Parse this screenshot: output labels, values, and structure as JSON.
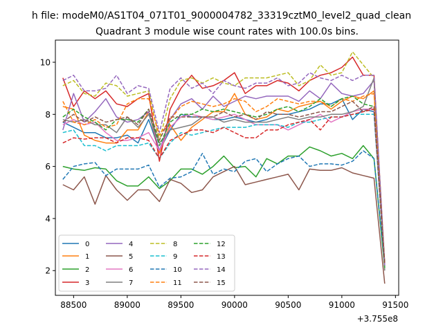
{
  "chart_data": {
    "type": "line",
    "suptitle": "h file: modeM0/AS1T04_071T01_9000004782_33319cztM0_level2_quad_clean",
    "title": "Quadrant 3 module wise count rates with 100.0s bins.",
    "xlabel": "",
    "ylabel": "",
    "x_offset_label": "+3.755e8",
    "xlim": [
      88330,
      91530
    ],
    "ylim": [
      1.05,
      10.85
    ],
    "xticks": [
      88500,
      89000,
      89500,
      90000,
      90500,
      91000,
      91500
    ],
    "xtick_labels": [
      "88500",
      "89000",
      "89500",
      "90000",
      "90500",
      "91000",
      "91500"
    ],
    "yticks": [
      2,
      4,
      6,
      8,
      10
    ],
    "ytick_labels": [
      "2",
      "4",
      "6",
      "8",
      "10"
    ],
    "grid": false,
    "legend_position": "lower-left",
    "x": [
      88400,
      88500,
      88600,
      88700,
      88800,
      88900,
      89000,
      89100,
      89200,
      89300,
      89400,
      89500,
      89600,
      89700,
      89800,
      89900,
      90000,
      90100,
      90200,
      90300,
      90400,
      90500,
      90600,
      90700,
      90800,
      90900,
      91000,
      91100,
      91200,
      91300,
      91400
    ],
    "series": [
      {
        "name": "0",
        "color": "#1f77b4",
        "dash": false,
        "values": [
          7.7,
          7.5,
          7.3,
          7.3,
          7.1,
          7.1,
          7.2,
          6.9,
          7.8,
          6.6,
          7.4,
          8.0,
          7.9,
          7.9,
          7.8,
          7.8,
          7.9,
          7.8,
          7.7,
          7.8,
          8.0,
          8.0,
          8.1,
          8.2,
          8.4,
          8.4,
          8.6,
          7.8,
          8.2,
          8.1,
          2.2
        ]
      },
      {
        "name": "1",
        "color": "#ff7f0e",
        "dash": false,
        "values": [
          8.3,
          8.2,
          7.2,
          7.0,
          6.9,
          6.9,
          7.4,
          7.4,
          8.1,
          6.5,
          7.6,
          7.0,
          7.5,
          7.8,
          8.1,
          8.1,
          8.8,
          8.0,
          7.8,
          7.9,
          8.2,
          8.1,
          8.3,
          8.4,
          8.5,
          8.2,
          8.5,
          8.7,
          8.6,
          8.9,
          2.3
        ]
      },
      {
        "name": "2",
        "color": "#2ca02c",
        "dash": false,
        "values": [
          6.0,
          5.9,
          5.85,
          5.95,
          5.9,
          5.45,
          5.25,
          5.25,
          5.6,
          5.15,
          5.45,
          5.9,
          5.9,
          5.7,
          6.0,
          6.4,
          5.95,
          6.0,
          5.6,
          6.3,
          6.1,
          6.4,
          6.4,
          6.75,
          6.6,
          6.4,
          6.5,
          6.3,
          6.8,
          6.3,
          2.1
        ]
      },
      {
        "name": "3",
        "color": "#d62728",
        "dash": false,
        "values": [
          9.4,
          8.3,
          8.9,
          8.6,
          8.9,
          8.4,
          8.3,
          8.6,
          8.8,
          6.2,
          8.2,
          9.0,
          9.5,
          9.0,
          9.1,
          9.3,
          9.6,
          8.8,
          9.1,
          9.1,
          9.3,
          9.2,
          8.9,
          9.3,
          9.5,
          9.6,
          9.8,
          10.2,
          9.5,
          9.5,
          2.2
        ]
      },
      {
        "name": "4",
        "color": "#9467bd",
        "dash": false,
        "values": [
          7.4,
          8.8,
          7.7,
          8.1,
          8.6,
          7.9,
          7.7,
          7.8,
          8.1,
          6.6,
          7.8,
          8.4,
          8.6,
          8.2,
          8.7,
          8.3,
          8.5,
          8.7,
          8.6,
          8.7,
          8.7,
          8.7,
          8.5,
          8.9,
          8.6,
          9.2,
          8.8,
          8.7,
          8.8,
          9.3,
          2.2
        ]
      },
      {
        "name": "5",
        "color": "#8c564b",
        "dash": false,
        "values": [
          5.3,
          5.1,
          5.6,
          4.55,
          5.65,
          5.1,
          4.7,
          5.1,
          5.1,
          4.65,
          5.5,
          5.35,
          5.0,
          5.1,
          5.6,
          5.8,
          6.0,
          5.3,
          5.4,
          5.5,
          5.6,
          5.7,
          5.1,
          5.9,
          5.85,
          5.85,
          5.95,
          5.75,
          5.65,
          5.55,
          1.5
        ]
      },
      {
        "name": "6",
        "color": "#e377c2",
        "dash": false,
        "values": [
          7.6,
          7.8,
          7.6,
          7.7,
          7.3,
          7.0,
          7.0,
          7.1,
          7.3,
          6.6,
          7.5,
          7.9,
          8.0,
          7.9,
          7.8,
          7.9,
          8.0,
          7.8,
          7.6,
          7.6,
          7.6,
          7.4,
          7.6,
          7.8,
          8.0,
          7.7,
          7.9,
          8.1,
          8.2,
          8.2,
          2.3
        ]
      },
      {
        "name": "7",
        "color": "#7f7f7f",
        "dash": false,
        "values": [
          7.8,
          7.7,
          7.8,
          7.6,
          7.6,
          7.3,
          7.9,
          7.5,
          8.0,
          6.9,
          7.4,
          7.5,
          7.6,
          7.9,
          7.9,
          7.7,
          7.8,
          7.7,
          7.7,
          7.7,
          7.8,
          7.9,
          7.8,
          7.9,
          7.9,
          8.0,
          8.0,
          8.1,
          8.3,
          9.4,
          2.0
        ]
      },
      {
        "name": "8",
        "color": "#bcbd22",
        "dash": true,
        "values": [
          9.1,
          9.3,
          8.8,
          8.7,
          9.2,
          9.1,
          8.7,
          8.8,
          8.9,
          7.0,
          8.6,
          9.3,
          9.4,
          9.2,
          9.4,
          9.2,
          9.1,
          9.4,
          9.4,
          9.4,
          9.5,
          9.6,
          9.1,
          9.3,
          9.9,
          9.5,
          9.6,
          10.4,
          9.9,
          9.4,
          2.3
        ]
      },
      {
        "name": "9",
        "color": "#17becf",
        "dash": true,
        "values": [
          7.3,
          7.4,
          6.8,
          6.8,
          6.6,
          6.8,
          6.8,
          6.8,
          6.9,
          6.3,
          6.9,
          7.3,
          7.2,
          7.3,
          7.4,
          7.5,
          7.5,
          7.5,
          7.6,
          7.6,
          7.6,
          7.5,
          7.7,
          7.7,
          7.8,
          7.9,
          7.9,
          8.0,
          8.0,
          8.0,
          2.2
        ]
      },
      {
        "name": "10",
        "color": "#1f77b4",
        "dash": true,
        "values": [
          5.5,
          6.0,
          6.1,
          6.15,
          5.65,
          5.9,
          5.9,
          5.9,
          6.05,
          5.2,
          5.55,
          5.6,
          5.8,
          6.5,
          5.7,
          5.9,
          5.8,
          6.2,
          6.3,
          5.8,
          6.1,
          6.3,
          6.4,
          6.0,
          6.1,
          6.1,
          6.05,
          6.2,
          6.6,
          6.3,
          2.2
        ]
      },
      {
        "name": "11",
        "color": "#ff7f0e",
        "dash": true,
        "values": [
          8.5,
          7.7,
          7.6,
          7.8,
          7.5,
          7.6,
          8.4,
          8.6,
          8.6,
          7.2,
          7.8,
          8.3,
          8.5,
          8.4,
          8.3,
          8.4,
          8.6,
          8.5,
          8.1,
          8.3,
          8.6,
          8.5,
          8.4,
          8.5,
          8.5,
          8.3,
          8.6,
          8.5,
          8.7,
          8.8,
          2.2
        ]
      },
      {
        "name": "12",
        "color": "#2ca02c",
        "dash": true,
        "values": [
          7.9,
          8.2,
          7.9,
          7.7,
          7.4,
          7.8,
          7.8,
          7.7,
          8.2,
          6.8,
          7.7,
          8.0,
          8.0,
          8.2,
          8.1,
          8.2,
          8.1,
          8.0,
          7.9,
          8.0,
          8.2,
          8.3,
          8.1,
          8.3,
          8.6,
          8.3,
          8.6,
          8.7,
          8.4,
          8.3,
          2.1
        ]
      },
      {
        "name": "13",
        "color": "#d62728",
        "dash": true,
        "values": [
          6.9,
          7.1,
          7.05,
          7.1,
          7.1,
          6.9,
          7.1,
          7.1,
          7.0,
          6.3,
          7.0,
          7.2,
          7.4,
          7.4,
          7.3,
          7.5,
          7.3,
          7.1,
          7.1,
          7.4,
          7.4,
          7.6,
          7.7,
          7.8,
          7.4,
          7.9,
          7.9,
          8.0,
          8.1,
          8.2,
          2.2
        ]
      },
      {
        "name": "14",
        "color": "#9467bd",
        "dash": true,
        "values": [
          9.3,
          9.5,
          8.9,
          8.9,
          9.0,
          9.5,
          8.8,
          9.1,
          9.0,
          7.3,
          9.0,
          9.4,
          9.0,
          9.2,
          8.8,
          9.3,
          9.1,
          9.0,
          9.2,
          9.2,
          9.4,
          9.1,
          9.2,
          9.6,
          9.4,
          9.3,
          9.5,
          9.3,
          9.5,
          9.5,
          2.2
        ]
      },
      {
        "name": "15",
        "color": "#8c564b",
        "dash": true,
        "values": [
          7.7,
          8.0,
          7.7,
          7.9,
          7.7,
          7.8,
          7.9,
          7.6,
          8.2,
          7.0,
          7.9,
          7.9,
          7.9,
          7.9,
          7.9,
          8.1,
          7.9,
          8.0,
          7.8,
          8.1,
          8.0,
          8.0,
          7.9,
          8.0,
          8.1,
          8.1,
          8.3,
          8.5,
          8.1,
          8.3,
          2.3
        ]
      }
    ]
  }
}
